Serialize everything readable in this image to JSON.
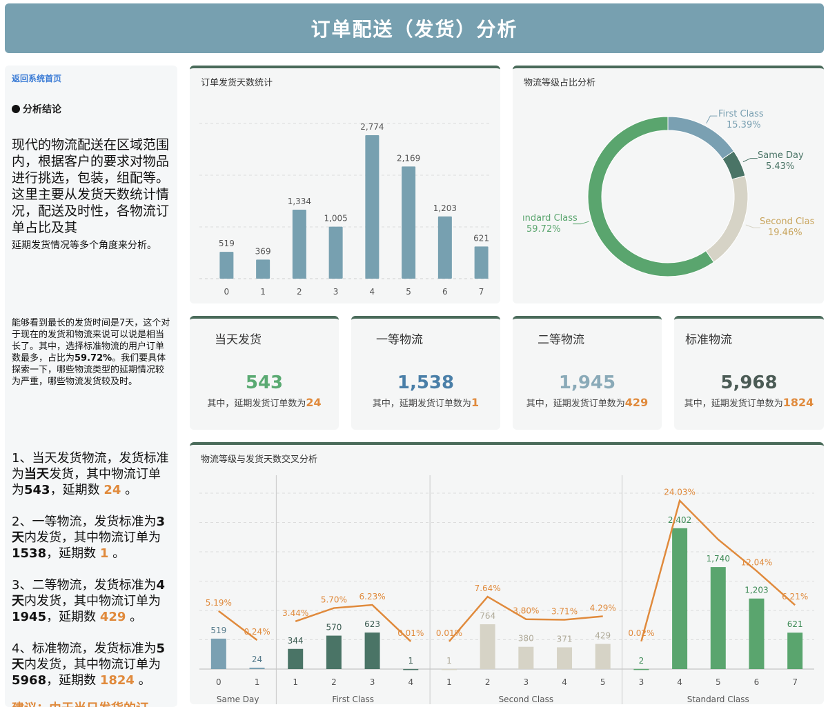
{
  "header": {
    "title": "订单配送（发货）分析"
  },
  "sidebar": {
    "back_link": "返回系统首页",
    "conclusion_label": "分析结论",
    "intro_large": "现代的物流配送在区域范围内，根据客户的要求对物品进行挑选，包装，组配等。这里主要从发货天数统计情况，配送及时性，各物流订单占比及其",
    "intro_small": "延期发货情况等多个角度来分析。",
    "para2_a": "能够看到最长的发货时间是7天，这个对于现在的发货和物流来说可以说是相当长了。其中，选择标准物流的用户订单数最多，占比为",
    "para2_pct": "59.72%",
    "para2_b": "。我们要具体探索一下，哪些物流类型的延期情况较为严重，哪些物流发货较及时。",
    "items": [
      {
        "a": "1、当天发货物流，发货标准为",
        "b": "当天",
        "c": "发货，其中物流订单为",
        "d": "543",
        "e": "，延期数 ",
        "f": "24",
        "g": " 。"
      },
      {
        "a": "2、一等物流，发货标准为",
        "b": "3天",
        "c": "内发货，其中物流订单为",
        "d": "1538",
        "e": "，延期数 ",
        "f": "1",
        "g": " 。"
      },
      {
        "a": "3、二等物流，发货标准为",
        "b": "4天",
        "c": "内发货，其中物流订单为",
        "d": "1945",
        "e": "，延期数 ",
        "f": "429",
        "g": " 。"
      },
      {
        "a": "4、标准物流，发货标准为",
        "b": "5天",
        "c": "内发货，其中物流订单为",
        "d": "5968",
        "e": "，延期数 ",
        "f": "1824",
        "g": " 。"
      }
    ],
    "cut_text": "建议：由于当日发货的订"
  },
  "cards": [
    {
      "title": "当天发货",
      "value": "543",
      "sub": "其中，延期发货订单数为",
      "delay": "24",
      "color": "#5aaa72"
    },
    {
      "title": "一等物流",
      "value": "1,538",
      "sub": "其中，延期发货订单数为",
      "delay": "1",
      "color": "#4a7fa8"
    },
    {
      "title": "二等物流",
      "value": "1,945",
      "sub": "其中，延期发货订单数为",
      "delay": "429",
      "color": "#8aaab8"
    },
    {
      "title": "标准物流",
      "value": "5,968",
      "sub": "其中，延期发货订单数为",
      "delay": "1824",
      "color": "#4b5b55"
    }
  ],
  "chart_data": [
    {
      "type": "bar",
      "title": "订单发货天数统计",
      "categories": [
        "0",
        "1",
        "2",
        "3",
        "4",
        "5",
        "6",
        "7"
      ],
      "values": [
        519,
        369,
        1334,
        1005,
        2774,
        2169,
        1203,
        621
      ],
      "value_labels": [
        "519",
        "369",
        "1,334",
        "1,005",
        "2,774",
        "2,169",
        "1,203",
        "621"
      ],
      "ylim": [
        0,
        3000
      ],
      "color": "#77a0b0"
    },
    {
      "type": "pie",
      "title": "物流等级占比分析",
      "slices": [
        {
          "name": "First Class",
          "value": 15.39,
          "label": "15.39%",
          "color": "#7aa0b2"
        },
        {
          "name": "Same Day",
          "value": 5.43,
          "label": "5.43%",
          "color": "#4a7466"
        },
        {
          "name": "Second Class",
          "value": 19.46,
          "label": "19.46%",
          "color": "#d6d3c6"
        },
        {
          "name": "Standard Class",
          "value": 59.72,
          "label": "59.72%",
          "color": "#5aa56e"
        }
      ],
      "visible_names": {
        "First Class": "First Class",
        "Same Day": "Same Day",
        "Second Class": "Second Clas",
        "Standard Class": "ındard Class"
      }
    },
    {
      "type": "bar",
      "title": "物流等级与发货天数交叉分析",
      "groups": [
        {
          "name": "Same Day",
          "color": "#7aa0b2",
          "days": [
            "0",
            "1"
          ],
          "counts": [
            519,
            24
          ],
          "count_labels": [
            "519",
            "24"
          ],
          "rates": [
            5.19,
            0.24
          ],
          "rate_labels": [
            "5.19%",
            "0.24%"
          ]
        },
        {
          "name": "First Class",
          "color": "#4a7466",
          "days": [
            "1",
            "2",
            "3",
            "4"
          ],
          "counts": [
            344,
            570,
            623,
            1
          ],
          "count_labels": [
            "344",
            "570",
            "623",
            "1"
          ],
          "rates": [
            3.44,
            5.7,
            6.23,
            0.01
          ],
          "rate_labels": [
            "3.44%",
            "5.70%",
            "6.23%",
            "0.01%"
          ]
        },
        {
          "name": "Second Class",
          "color": "#d6d3c6",
          "days": [
            "1",
            "2",
            "3",
            "4",
            "5"
          ],
          "counts": [
            1,
            764,
            380,
            371,
            429
          ],
          "count_labels": [
            "1",
            "764",
            "380",
            "371",
            "429"
          ],
          "rates": [
            0.01,
            7.64,
            3.8,
            3.71,
            4.29
          ],
          "rate_labels": [
            "0.01%",
            "7.64%",
            "3.80%",
            "3.71%",
            "4.29%"
          ]
        },
        {
          "name": "Standard Class",
          "color": "#5aa56e",
          "days": [
            "3",
            "4",
            "5",
            "6",
            "7"
          ],
          "counts": [
            2,
            2402,
            1740,
            1203,
            621
          ],
          "count_labels": [
            "2",
            "2,402",
            "1,740",
            "1,203",
            "621"
          ],
          "rates": [
            0.02,
            24.03,
            17.4,
            12.04,
            6.21
          ],
          "rate_labels": [
            "0.02%",
            "24.03%",
            "",
            "12.04%",
            "6.21%"
          ]
        }
      ],
      "ylim_counts": [
        0,
        3000
      ],
      "ylim_rates": [
        0,
        30
      ],
      "line_color": "#e08a3c"
    }
  ]
}
